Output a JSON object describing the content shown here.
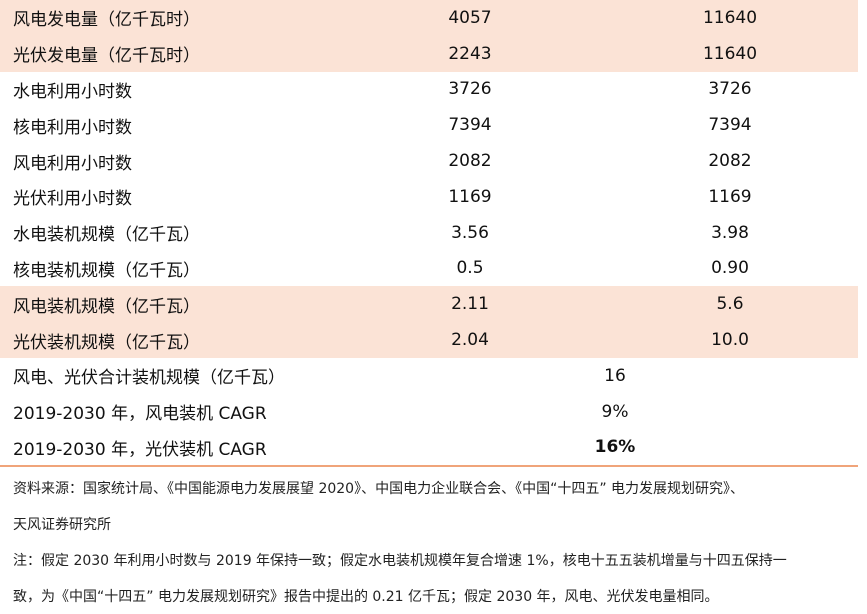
{
  "table": {
    "rows": [
      {
        "label": "风电发电量（亿千瓦时）",
        "v1": "4057",
        "v2": "11640",
        "highlight": true
      },
      {
        "label": "光伏发电量（亿千瓦时）",
        "v1": "2243",
        "v2": "11640",
        "highlight": true
      },
      {
        "label": "水电利用小时数",
        "v1": "3726",
        "v2": "3726",
        "highlight": false
      },
      {
        "label": "核电利用小时数",
        "v1": "7394",
        "v2": "7394",
        "highlight": false
      },
      {
        "label": "风电利用小时数",
        "v1": "2082",
        "v2": "2082",
        "highlight": false
      },
      {
        "label": "光伏利用小时数",
        "v1": "1169",
        "v2": "1169",
        "highlight": false
      },
      {
        "label": "水电装机规模（亿千瓦）",
        "v1": "3.56",
        "v2": "3.98",
        "highlight": false
      },
      {
        "label": "核电装机规模（亿千瓦）",
        "v1": "0.5",
        "v2": "0.90",
        "highlight": false
      },
      {
        "label": "风电装机规模（亿千瓦）",
        "v1": "2.11",
        "v2": "5.6",
        "highlight": true
      },
      {
        "label": "光伏装机规模（亿千瓦）",
        "v1": "2.04",
        "v2": "10.0",
        "highlight": true
      }
    ],
    "merged_rows": [
      {
        "label": "风电、光伏合计装机规模（亿千瓦）",
        "value": "16",
        "bold": false
      },
      {
        "label": "2019-2030 年，风电装机 CAGR",
        "value": "9%",
        "bold": false
      },
      {
        "label": "2019-2030 年，光伏装机 CAGR",
        "value": "16%",
        "bold": true
      }
    ]
  },
  "notes": {
    "source_line1": "资料来源：国家统计局、《中国能源电力发展展望 2020》、中国电力企业联合会、《中国“十四五” 电力发展规划研究》、",
    "source_line2": "天风证券研究所",
    "note_line1": "注：假定 2030 年利用小时数与 2019 年保持一致；假定水电装机规模年复合增速 1%，核电十五五装机增量与十四五保持一",
    "note_line2": "致，为《中国“十四五” 电力发展规划研究》报告中提出的 0.21 亿千瓦；假定 2030 年，风电、光伏发电量相同。"
  },
  "colors": {
    "highlight_bg": "#fbe3d6",
    "divider": "#f0a47a"
  }
}
